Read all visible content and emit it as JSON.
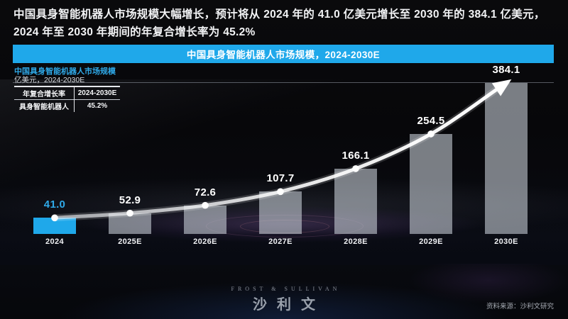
{
  "header": {
    "title": "中国具身智能机器人市场规模大幅增长，预计将从 2024 年的 41.0 亿美元增长至 2030 年的 384.1 亿美元，2024 年至 2030 年期间的年复合增长率为 45.2%"
  },
  "banner": {
    "label": "中国具身智能机器人市场规模，2024-2030E"
  },
  "chart_header": {
    "title": "中国具身智能机器人市场规模",
    "subtitle": "亿美元，2024-2030E"
  },
  "cagr_table": {
    "header": [
      "年复合增长率",
      "2024-2030E"
    ],
    "rows": [
      [
        "具身智能机器人",
        "45.2%"
      ]
    ]
  },
  "chart_data": {
    "type": "bar",
    "title": "中国具身智能机器人市场规模",
    "ylabel": "亿美元",
    "xlabel": "",
    "categories": [
      "2024",
      "2025E",
      "2026E",
      "2027E",
      "2028E",
      "2029E",
      "2030E"
    ],
    "values": [
      41.0,
      52.9,
      72.6,
      107.7,
      166.1,
      254.5,
      384.1
    ],
    "ylim": [
      0,
      384.1
    ],
    "grid": false,
    "legend_position": "none",
    "highlight_index": 0,
    "trend_line": {
      "style": "smooth-curve-with-arrow",
      "cagr": "45.2%",
      "period": "2024-2030E"
    }
  },
  "theme": {
    "accent": "#1FA8EA",
    "accent_text": "#2FA9E8",
    "bar_fill": "rgba(198,205,214,0.60)",
    "line_color": "#FFFFFF",
    "background": "#07080C"
  },
  "footer": {
    "logo_top": "FROST & SULLIVAN",
    "logo_main": "沙利文",
    "source": "资料来源：沙利文研究"
  }
}
